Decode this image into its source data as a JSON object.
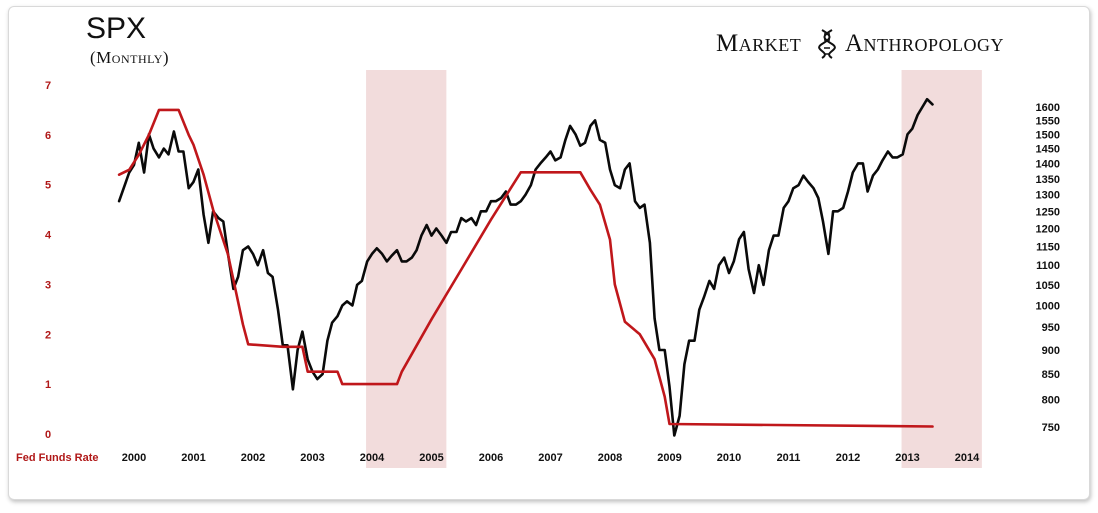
{
  "header": {
    "title": "SPX",
    "subtitle": "(Monthly)",
    "brand_left": "Market",
    "brand_right": "Anthropology",
    "brand_logo_icon": "dna-helix-icon"
  },
  "chart_data": {
    "type": "line",
    "xlabel": "Fed Funds Rate",
    "x_ticks": [
      "2000",
      "2001",
      "2002",
      "2003",
      "2004",
      "2005",
      "2006",
      "2007",
      "2008",
      "2009",
      "2010",
      "2011",
      "2012",
      "2013",
      "2014"
    ],
    "left_axis_ticks": [
      "0",
      "1",
      "2",
      "3",
      "4",
      "5",
      "6",
      "7"
    ],
    "right_axis_ticks": [
      "750",
      "800",
      "850",
      "900",
      "950",
      "1000",
      "1050",
      "1100",
      "1150",
      "1200",
      "1250",
      "1300",
      "1350",
      "1400",
      "1450",
      "1500",
      "1550",
      "1600"
    ],
    "left_ylim": [
      0,
      7
    ],
    "right_ylim": [
      750,
      1600
    ],
    "right_axis_scale": "log",
    "shaded_periods": [
      [
        2003.9,
        2005.25
      ],
      [
        2012.9,
        2014.25
      ]
    ],
    "colors": {
      "fed_funds": "#c0171b",
      "spx": "#0a0a0a",
      "shade": "#f2dcdc"
    },
    "series": [
      {
        "key": "spx",
        "axis": "right",
        "x": [
          1999.75,
          1999.92,
          2000.0,
          2000.08,
          2000.17,
          2000.25,
          2000.33,
          2000.42,
          2000.5,
          2000.58,
          2000.67,
          2000.75,
          2000.83,
          2000.92,
          2001.0,
          2001.08,
          2001.17,
          2001.25,
          2001.33,
          2001.42,
          2001.5,
          2001.58,
          2001.67,
          2001.75,
          2001.83,
          2001.92,
          2002.0,
          2002.08,
          2002.17,
          2002.25,
          2002.33,
          2002.42,
          2002.5,
          2002.58,
          2002.67,
          2002.75,
          2002.83,
          2002.92,
          2003.0,
          2003.08,
          2003.17,
          2003.25,
          2003.33,
          2003.42,
          2003.5,
          2003.58,
          2003.67,
          2003.75,
          2003.83,
          2003.92,
          2004.0,
          2004.08,
          2004.17,
          2004.25,
          2004.33,
          2004.42,
          2004.5,
          2004.58,
          2004.67,
          2004.75,
          2004.83,
          2004.92,
          2005.0,
          2005.08,
          2005.17,
          2005.25,
          2005.33,
          2005.42,
          2005.5,
          2005.58,
          2005.67,
          2005.75,
          2005.83,
          2005.92,
          2006.0,
          2006.08,
          2006.17,
          2006.25,
          2006.33,
          2006.42,
          2006.5,
          2006.58,
          2006.67,
          2006.75,
          2006.83,
          2006.92,
          2007.0,
          2007.08,
          2007.17,
          2007.25,
          2007.33,
          2007.42,
          2007.5,
          2007.58,
          2007.67,
          2007.75,
          2007.83,
          2007.92,
          2008.0,
          2008.08,
          2008.17,
          2008.25,
          2008.33,
          2008.42,
          2008.5,
          2008.58,
          2008.67,
          2008.75,
          2008.83,
          2008.92,
          2009.0,
          2009.08,
          2009.17,
          2009.25,
          2009.33,
          2009.42,
          2009.5,
          2009.58,
          2009.67,
          2009.75,
          2009.83,
          2009.92,
          2010.0,
          2010.08,
          2010.17,
          2010.25,
          2010.33,
          2010.42,
          2010.5,
          2010.58,
          2010.67,
          2010.75,
          2010.83,
          2010.92,
          2011.0,
          2011.08,
          2011.17,
          2011.25,
          2011.33,
          2011.42,
          2011.5,
          2011.58,
          2011.67,
          2011.75,
          2011.83,
          2011.92,
          2012.0,
          2012.08,
          2012.17,
          2012.25,
          2012.33,
          2012.42,
          2012.5,
          2012.58,
          2012.67,
          2012.75,
          2012.83,
          2012.92,
          2013.0,
          2013.08,
          2013.17,
          2013.25,
          2013.33,
          2013.42
        ],
        "values": [
          1280,
          1370,
          1395,
          1470,
          1370,
          1500,
          1450,
          1420,
          1450,
          1430,
          1510,
          1440,
          1440,
          1320,
          1340,
          1380,
          1240,
          1160,
          1250,
          1230,
          1220,
          1130,
          1040,
          1070,
          1140,
          1150,
          1130,
          1100,
          1140,
          1080,
          1070,
          990,
          910,
          910,
          820,
          900,
          940,
          880,
          855,
          840,
          850,
          920,
          960,
          975,
          1000,
          1010,
          1000,
          1050,
          1060,
          1110,
          1130,
          1145,
          1130,
          1110,
          1125,
          1140,
          1110,
          1110,
          1120,
          1140,
          1180,
          1210,
          1180,
          1200,
          1180,
          1160,
          1190,
          1190,
          1230,
          1220,
          1230,
          1210,
          1250,
          1250,
          1280,
          1280,
          1290,
          1310,
          1270,
          1270,
          1280,
          1300,
          1330,
          1380,
          1400,
          1420,
          1440,
          1410,
          1420,
          1480,
          1530,
          1500,
          1460,
          1470,
          1530,
          1550,
          1480,
          1470,
          1380,
          1330,
          1320,
          1380,
          1400,
          1280,
          1260,
          1270,
          1160,
          970,
          900,
          900,
          825,
          735,
          770,
          870,
          920,
          920,
          990,
          1020,
          1060,
          1040,
          1100,
          1120,
          1080,
          1110,
          1170,
          1190,
          1090,
          1030,
          1100,
          1050,
          1140,
          1180,
          1180,
          1260,
          1280,
          1320,
          1330,
          1360,
          1340,
          1320,
          1290,
          1220,
          1130,
          1250,
          1250,
          1260,
          1310,
          1370,
          1400,
          1400,
          1310,
          1360,
          1380,
          1410,
          1440,
          1420,
          1420,
          1430,
          1500,
          1520,
          1570,
          1600,
          1630,
          1610
        ]
      },
      {
        "key": "fed_funds",
        "axis": "left",
        "x": [
          1999.75,
          1999.92,
          2000.08,
          2000.25,
          2000.42,
          2000.75,
          2000.92,
          2001.0,
          2001.17,
          2001.33,
          2001.58,
          2001.83,
          2001.92,
          2002.5,
          2002.83,
          2002.92,
          2003.42,
          2003.5,
          2003.75,
          2004.0,
          2004.42,
          2004.5,
          2005.0,
          2005.5,
          2006.0,
          2006.5,
          2007.5,
          2007.67,
          2007.83,
          2008.0,
          2008.08,
          2008.25,
          2008.5,
          2008.75,
          2008.92,
          2009.0,
          2013.42
        ],
        "values": [
          5.2,
          5.3,
          5.6,
          6.0,
          6.5,
          6.5,
          6.0,
          5.8,
          5.2,
          4.5,
          3.6,
          2.2,
          1.8,
          1.75,
          1.75,
          1.25,
          1.25,
          1.0,
          1.0,
          1.0,
          1.0,
          1.25,
          2.3,
          3.3,
          4.3,
          5.25,
          5.25,
          4.9,
          4.6,
          3.9,
          3.0,
          2.25,
          2.0,
          1.5,
          0.75,
          0.2,
          0.15
        ]
      }
    ]
  }
}
